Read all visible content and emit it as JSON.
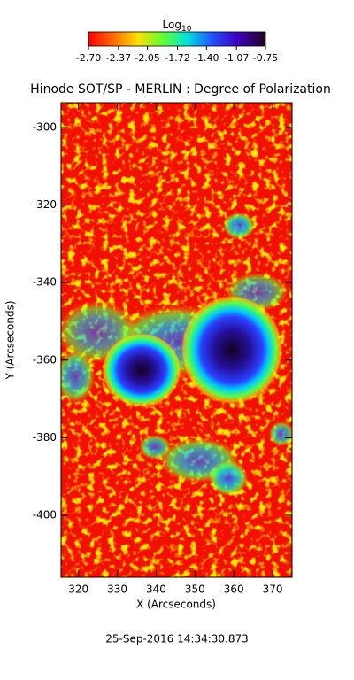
{
  "chart_data": {
    "type": "image",
    "title": "Hinode SOT/SP - MERLIN : Degree of Polarization",
    "colorbar_label": "Log",
    "colorbar_label_sub": "10",
    "colorbar_lim": [
      -2.7,
      -0.75
    ],
    "colorbar_ticks": [
      {
        "value": -2.7,
        "label": "-2.70"
      },
      {
        "value": -2.37,
        "label": "-2.37"
      },
      {
        "value": -2.05,
        "label": "-2.05"
      },
      {
        "value": -1.72,
        "label": "-1.72"
      },
      {
        "value": -1.4,
        "label": "-1.40"
      },
      {
        "value": -1.07,
        "label": "-1.07"
      },
      {
        "value": -0.75,
        "label": "-0.75"
      }
    ],
    "x_label": "X (Arcseconds)",
    "y_label": "Y (Arcseconds)",
    "xlim": [
      315.5,
      375
    ],
    "xticks": [
      320,
      330,
      340,
      350,
      360,
      370
    ],
    "ylim": [
      -416,
      -293.6
    ],
    "yticks": [
      -300,
      -320,
      -340,
      -360,
      -380,
      -400
    ],
    "footer": "25-Sep-2016 14:34:30.873"
  }
}
